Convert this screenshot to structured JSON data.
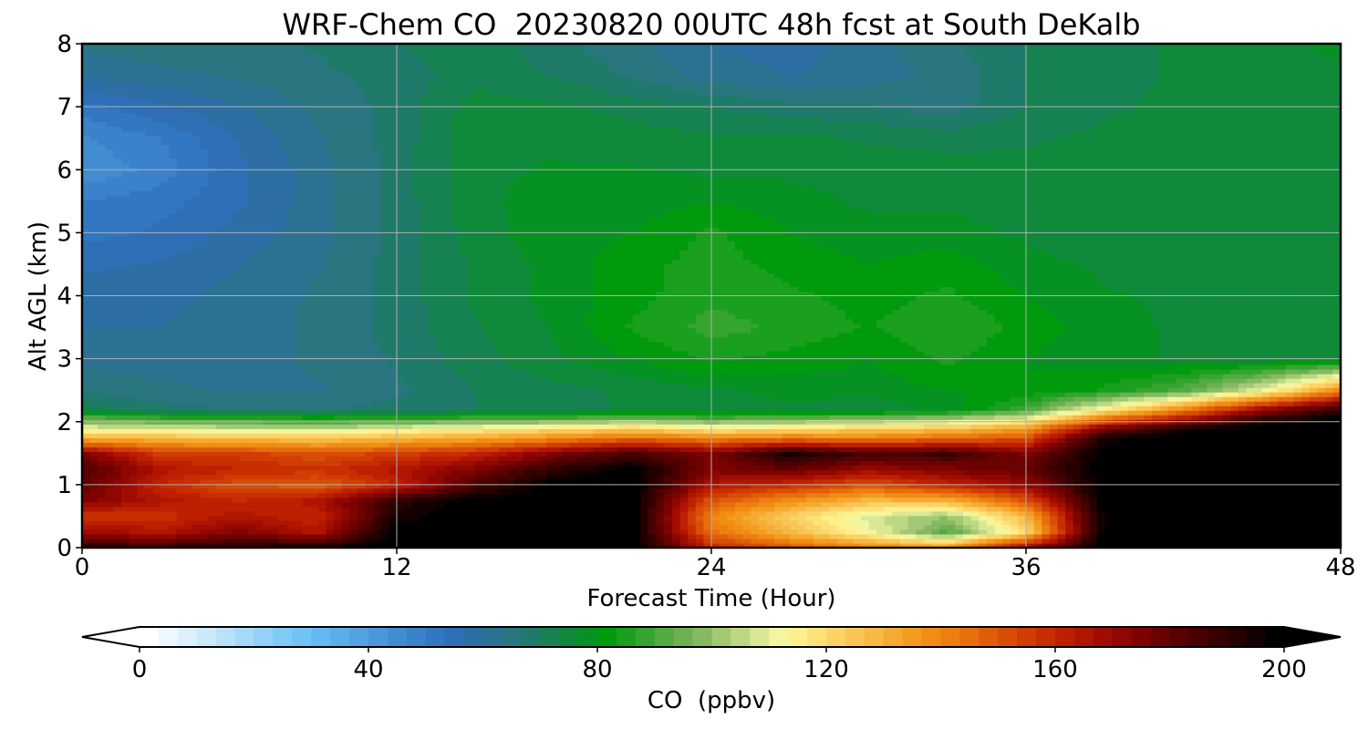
{
  "chart_data": {
    "type": "heatmap",
    "title": "WRF-Chem CO  20230820 00UTC 48h fcst at South DeKalb",
    "xlabel": "Forecast Time (Hour)",
    "ylabel": "Alt AGL (km)",
    "xlim": [
      0,
      48
    ],
    "ylim": [
      0,
      8
    ],
    "xticks": [
      0,
      12,
      24,
      36,
      48
    ],
    "yticks": [
      0,
      1,
      2,
      3,
      4,
      5,
      6,
      7,
      8
    ],
    "grid": true,
    "x": [
      0,
      3,
      6,
      9,
      12,
      15,
      18,
      21,
      24,
      27,
      30,
      33,
      36,
      39,
      42,
      45,
      48
    ],
    "y": [
      0,
      0.25,
      0.5,
      0.75,
      1,
      1.25,
      1.5,
      1.75,
      1.9,
      2.05,
      2.2,
      2.5,
      3,
      3.5,
      4,
      4.5,
      5,
      5.5,
      6,
      6.5,
      7,
      7.5,
      8
    ],
    "z": [
      [
        190,
        190,
        192,
        195,
        200,
        200,
        200,
        200,
        160,
        150,
        140,
        135,
        170,
        200,
        200,
        200,
        200
      ],
      [
        170,
        165,
        175,
        165,
        200,
        200,
        200,
        200,
        145,
        128,
        112,
        92,
        120,
        200,
        200,
        200,
        200
      ],
      [
        155,
        158,
        165,
        160,
        195,
        200,
        200,
        200,
        140,
        122,
        108,
        100,
        128,
        200,
        200,
        200,
        200
      ],
      [
        175,
        165,
        160,
        165,
        190,
        200,
        200,
        200,
        150,
        138,
        128,
        130,
        150,
        200,
        200,
        200,
        200
      ],
      [
        180,
        160,
        150,
        148,
        160,
        185,
        200,
        200,
        165,
        158,
        150,
        160,
        170,
        200,
        200,
        200,
        200
      ],
      [
        185,
        165,
        160,
        158,
        165,
        175,
        190,
        200,
        175,
        180,
        170,
        175,
        180,
        200,
        200,
        200,
        200
      ],
      [
        175,
        155,
        155,
        150,
        155,
        160,
        175,
        185,
        175,
        195,
        185,
        188,
        175,
        200,
        200,
        200,
        200
      ],
      [
        130,
        128,
        126,
        125,
        128,
        132,
        138,
        145,
        140,
        142,
        140,
        145,
        150,
        195,
        200,
        200,
        200
      ],
      [
        110,
        108,
        106,
        104,
        110,
        114,
        118,
        122,
        115,
        118,
        122,
        125,
        135,
        175,
        195,
        200,
        200
      ],
      [
        95,
        90,
        88,
        86,
        88,
        90,
        92,
        96,
        92,
        95,
        98,
        102,
        110,
        145,
        165,
        190,
        200
      ],
      [
        72,
        68,
        66,
        66,
        68,
        70,
        72,
        74,
        74,
        76,
        74,
        78,
        90,
        115,
        140,
        170,
        190
      ],
      [
        66,
        64,
        63,
        63,
        66,
        70,
        72,
        74,
        76,
        78,
        78,
        80,
        80,
        84,
        92,
        110,
        140
      ],
      [
        62,
        62,
        62,
        64,
        67,
        72,
        76,
        80,
        84,
        82,
        80,
        84,
        80,
        78,
        76,
        76,
        76
      ],
      [
        60,
        60,
        62,
        64,
        68,
        73,
        77,
        84,
        88,
        86,
        83,
        87,
        82,
        78,
        76,
        75,
        75
      ],
      [
        58,
        59,
        61,
        64,
        68,
        74,
        78,
        82,
        86,
        84,
        82,
        84,
        80,
        77,
        76,
        75,
        75
      ],
      [
        56,
        57,
        60,
        63,
        68,
        74,
        78,
        82,
        85,
        82,
        80,
        82,
        78,
        76,
        75,
        74,
        74
      ],
      [
        52,
        54,
        58,
        62,
        68,
        75,
        79,
        80,
        84,
        80,
        78,
        78,
        76,
        74,
        74,
        74,
        74
      ],
      [
        50,
        52,
        56,
        62,
        68,
        76,
        78,
        78,
        80,
        78,
        76,
        76,
        75,
        74,
        74,
        74,
        74
      ],
      [
        44,
        48,
        56,
        62,
        68,
        76,
        77,
        77,
        76,
        76,
        75,
        75,
        74,
        74,
        74,
        74,
        74
      ],
      [
        46,
        50,
        57,
        63,
        68,
        76,
        76,
        75,
        74,
        74,
        73,
        72,
        73,
        74,
        74,
        74,
        74
      ],
      [
        52,
        56,
        60,
        64,
        68,
        75,
        74,
        72,
        70,
        68,
        67,
        65,
        70,
        73,
        74,
        74,
        74
      ],
      [
        60,
        62,
        64,
        66,
        68,
        72,
        70,
        66,
        62,
        60,
        62,
        64,
        70,
        72,
        74,
        74,
        76
      ],
      [
        64,
        66,
        66,
        67,
        70,
        72,
        68,
        64,
        60,
        58,
        62,
        66,
        70,
        72,
        74,
        75,
        78
      ]
    ],
    "colorbar": {
      "label": "CO  (ppbv)",
      "min": 0,
      "max": 200,
      "ticks": [
        0,
        40,
        80,
        120,
        160,
        200
      ],
      "extend": "both",
      "colors": [
        "#ffffff",
        "#eef7fd",
        "#def0fb",
        "#cce9fa",
        "#b9e1f9",
        "#a6d9f8",
        "#93d1f7",
        "#80caf6",
        "#6fc3f5",
        "#63b9f2",
        "#5aaeea",
        "#52a3e2",
        "#4a98da",
        "#428dd2",
        "#3a82ca",
        "#3277c2",
        "#2e6fb6",
        "#2d6fa4",
        "#2c7292",
        "#2a7680",
        "#1f7a6a",
        "#168252",
        "#0e8a3a",
        "#069222",
        "#009a0d",
        "#1b9f1e",
        "#36a52f",
        "#51ab40",
        "#6cb151",
        "#87b862",
        "#a2c873",
        "#bdd884",
        "#d8e895",
        "#f3f6a0",
        "#fff08c",
        "#fde27a",
        "#fbd468",
        "#f9c656",
        "#f7b844",
        "#f5aa32",
        "#f39c20",
        "#f28d14",
        "#ee7e10",
        "#e86e0c",
        "#e05e09",
        "#d84e06",
        "#d03e03",
        "#c82e00",
        "#bd2000",
        "#b01500",
        "#a00c00",
        "#900600",
        "#7e0300",
        "#6c0200",
        "#5a0100",
        "#480100",
        "#360000",
        "#240000",
        "#120000",
        "#000000"
      ],
      "under_color": "#ffffff",
      "over_color": "#000000"
    }
  }
}
